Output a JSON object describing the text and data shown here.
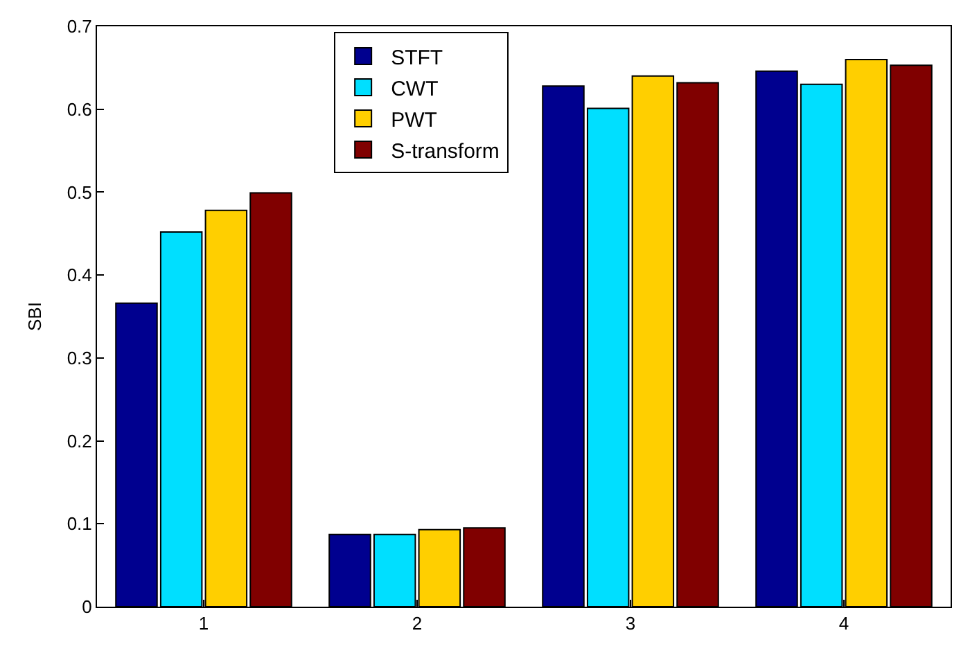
{
  "chart_data": {
    "type": "bar",
    "ylabel": "SBI",
    "categories": [
      "1",
      "2",
      "3",
      "4"
    ],
    "series": [
      {
        "name": "STFT",
        "color": "#00008f",
        "values": [
          0.366,
          0.087,
          0.628,
          0.646
        ]
      },
      {
        "name": "CWT",
        "color": "#00dfff",
        "values": [
          0.452,
          0.087,
          0.601,
          0.63
        ]
      },
      {
        "name": "PWT",
        "color": "#ffcf00",
        "values": [
          0.478,
          0.093,
          0.64,
          0.66
        ]
      },
      {
        "name": "S-transform",
        "color": "#800000",
        "values": [
          0.499,
          0.095,
          0.632,
          0.653
        ]
      }
    ],
    "ylim": [
      0,
      0.7
    ],
    "yticks": [
      0,
      0.1,
      0.2,
      0.3,
      0.4,
      0.5,
      0.6,
      0.7
    ],
    "legend": "top"
  }
}
